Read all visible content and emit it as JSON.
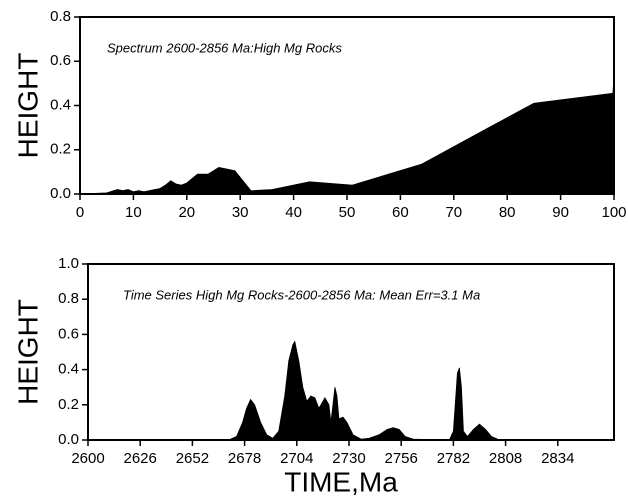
{
  "chart_data": [
    {
      "type": "area",
      "title": "Spectrum 2600-2856 Ma:High Mg Rocks",
      "y_label": "HEIGHT",
      "color": "#000000",
      "x": [
        0,
        5,
        7,
        8,
        9,
        10,
        11,
        12,
        13,
        14,
        15,
        16,
        17,
        18,
        19,
        20,
        22,
        24,
        26,
        29,
        32,
        36,
        43,
        51,
        64,
        75,
        85,
        99.8,
        100
      ],
      "values": [
        0,
        0.005,
        0.02,
        0.015,
        0.02,
        0.01,
        0.015,
        0.01,
        0.015,
        0.02,
        0.025,
        0.04,
        0.06,
        0.045,
        0.04,
        0.05,
        0.09,
        0.09,
        0.12,
        0.105,
        0.015,
        0.02,
        0.055,
        0.04,
        0.135,
        0.28,
        0.41,
        0.455,
        0.54
      ],
      "xlim": [
        0,
        100
      ],
      "ylim": [
        0,
        0.8
      ],
      "xticks": [
        0,
        10,
        20,
        30,
        40,
        50,
        60,
        70,
        80,
        90,
        100
      ],
      "yticks": [
        {
          "value": 0,
          "label": "0.0"
        },
        0.2,
        0.4,
        0.6,
        0.8
      ]
    },
    {
      "type": "area",
      "title": "Time Series High Mg Rocks-2600-2856 Ma: Mean Err=3.1 Ma",
      "y_label": "HEIGHT",
      "x_label": "TIME,Ma",
      "color": "#000000",
      "x": [
        2600,
        2670,
        2674,
        2677,
        2679,
        2681,
        2683,
        2686,
        2689,
        2692,
        2695,
        2698,
        2700,
        2702,
        2703,
        2705,
        2707,
        2709,
        2711,
        2713,
        2715,
        2718,
        2720,
        2721,
        2722,
        2723,
        2724,
        2725,
        2727,
        2729,
        2732,
        2736,
        2740,
        2745,
        2749,
        2752,
        2755,
        2758,
        2762,
        2780,
        2782,
        2784,
        2785,
        2786,
        2787,
        2789,
        2792,
        2795,
        2798,
        2801,
        2805,
        2862
      ],
      "values": [
        0,
        0,
        0.02,
        0.1,
        0.18,
        0.23,
        0.2,
        0.1,
        0.03,
        0.01,
        0.05,
        0.25,
        0.45,
        0.54,
        0.56,
        0.45,
        0.3,
        0.22,
        0.25,
        0.24,
        0.18,
        0.24,
        0.2,
        0.1,
        0.2,
        0.3,
        0.25,
        0.12,
        0.13,
        0.1,
        0.03,
        0.005,
        0.01,
        0.03,
        0.06,
        0.07,
        0.06,
        0.02,
        0.005,
        0,
        0.05,
        0.38,
        0.41,
        0.3,
        0.05,
        0.02,
        0.06,
        0.09,
        0.06,
        0.02,
        0,
        0
      ],
      "xlim": [
        2600,
        2862
      ],
      "ylim": [
        0,
        1
      ],
      "xticks": [
        2600,
        2626,
        2652,
        2678,
        2704,
        2730,
        2756,
        2782,
        2808,
        2834
      ],
      "yticks": [
        {
          "value": 0,
          "label": "0.0"
        },
        0.2,
        0.4,
        0.6,
        0.8,
        {
          "value": 1,
          "label": "1.0"
        }
      ]
    }
  ]
}
